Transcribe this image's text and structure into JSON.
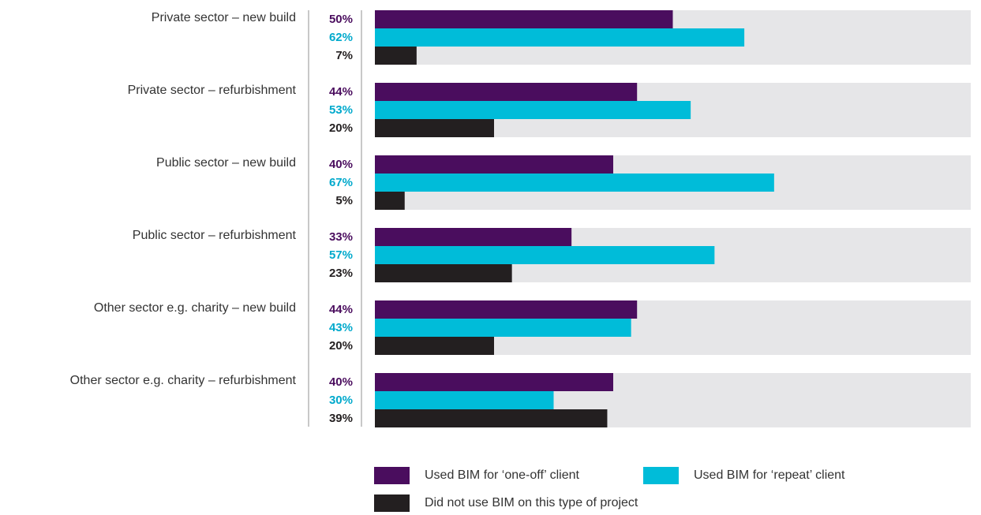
{
  "chart_data": {
    "type": "bar",
    "orientation": "horizontal",
    "categories": [
      "Private sector – new build",
      "Private sector – refurbishment",
      "Public sector – new build",
      "Public sector – refurbishment",
      "Other sector e.g. charity – new build",
      "Other sector e.g. charity – refurbishment"
    ],
    "series": [
      {
        "name": "Used BIM for ‘one-off’ client",
        "color": "#4a0d5e",
        "label_color": "#4a0d5e",
        "values": [
          50,
          44,
          40,
          33,
          44,
          40
        ],
        "labels": [
          "50%",
          "44%",
          "40%",
          "33%",
          "44%",
          "40%"
        ]
      },
      {
        "name": "Used BIM for ‘repeat’ client",
        "color": "#00bcd9",
        "label_color": "#00a9cc",
        "values": [
          62,
          53,
          67,
          57,
          43,
          30
        ],
        "labels": [
          "62%",
          "53%",
          "67%",
          "57%",
          "43%",
          "30%"
        ]
      },
      {
        "name": "Did not use BIM on this type of project",
        "color": "#231f20",
        "label_color": "#231f20",
        "values": [
          7,
          20,
          5,
          23,
          20,
          39
        ],
        "labels": [
          "7%",
          "20%",
          "5%",
          "23%",
          "20%",
          "39%"
        ]
      }
    ],
    "xlim": [
      0,
      100
    ],
    "background_bar_color": "#e6e6e8",
    "grid": false,
    "legend": "bottom"
  }
}
